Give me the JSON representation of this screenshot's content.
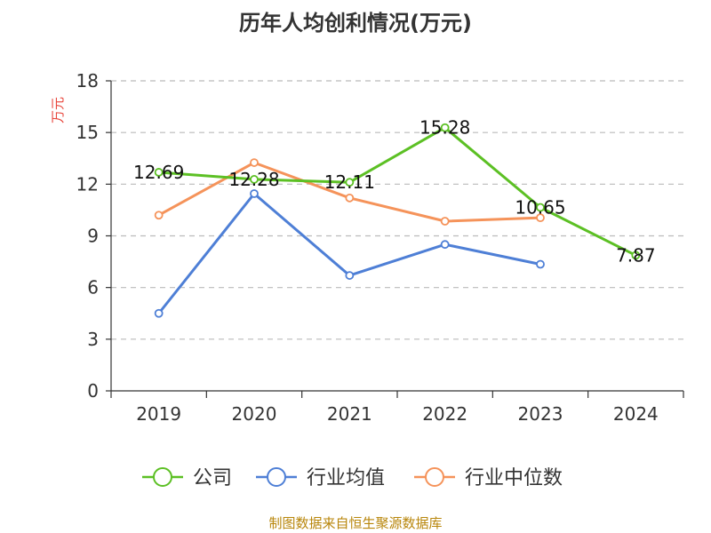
{
  "title": "历年人均创利情况(万元)",
  "source": "制图数据来自恒生聚源数据库",
  "colors": {
    "公司": "#5cc024",
    "行业均值": "#4e7fd6",
    "行业中位数": "#f5935a",
    "ylabel": "#e8463c",
    "grid": "#bbbbbb"
  },
  "chart_data": {
    "type": "line",
    "title": "历年人均创利情况(万元)",
    "ylabel": "万元",
    "xlabel": "",
    "categories": [
      "2019",
      "2020",
      "2021",
      "2022",
      "2023",
      "2024"
    ],
    "ylim": [
      0,
      18
    ],
    "yticks": [
      0,
      3,
      6,
      9,
      12,
      15,
      18
    ],
    "grid": "horizontal-dashed",
    "legend_position": "bottom",
    "series": [
      {
        "name": "公司",
        "values": [
          12.69,
          12.28,
          12.11,
          15.28,
          10.65,
          7.87
        ],
        "data_labels": [
          "12.69",
          "12.28",
          "12.11",
          "15.28",
          "10.65",
          "7.87"
        ]
      },
      {
        "name": "行业均值",
        "values": [
          4.5,
          11.45,
          6.7,
          8.5,
          7.35,
          null
        ]
      },
      {
        "name": "行业中位数",
        "values": [
          10.2,
          13.25,
          11.2,
          9.85,
          10.05,
          null
        ]
      }
    ]
  }
}
